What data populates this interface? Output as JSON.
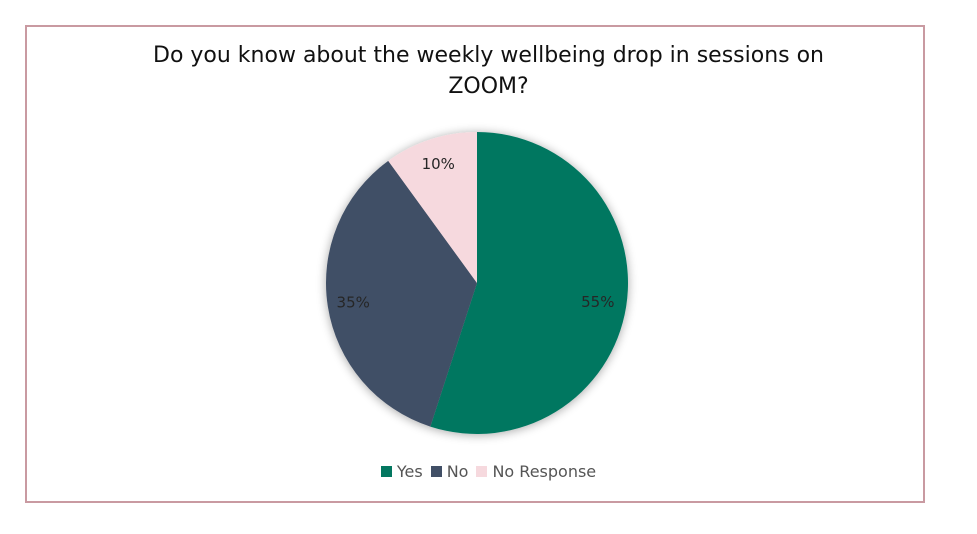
{
  "chart_data": {
    "type": "pie",
    "title": "Do you know about the weekly wellbeing drop in sessions on ZOOM?",
    "categories": [
      "Yes",
      "No",
      "No Response"
    ],
    "values": [
      55,
      35,
      10
    ],
    "data_labels": [
      "55%",
      "35%",
      "10%"
    ],
    "colors": [
      "#037760",
      "#414f66",
      "#f6d9de"
    ],
    "legend_position": "bottom",
    "start_angle": "12 o'clock, clockwise"
  },
  "frame_color": "#c99aa1"
}
